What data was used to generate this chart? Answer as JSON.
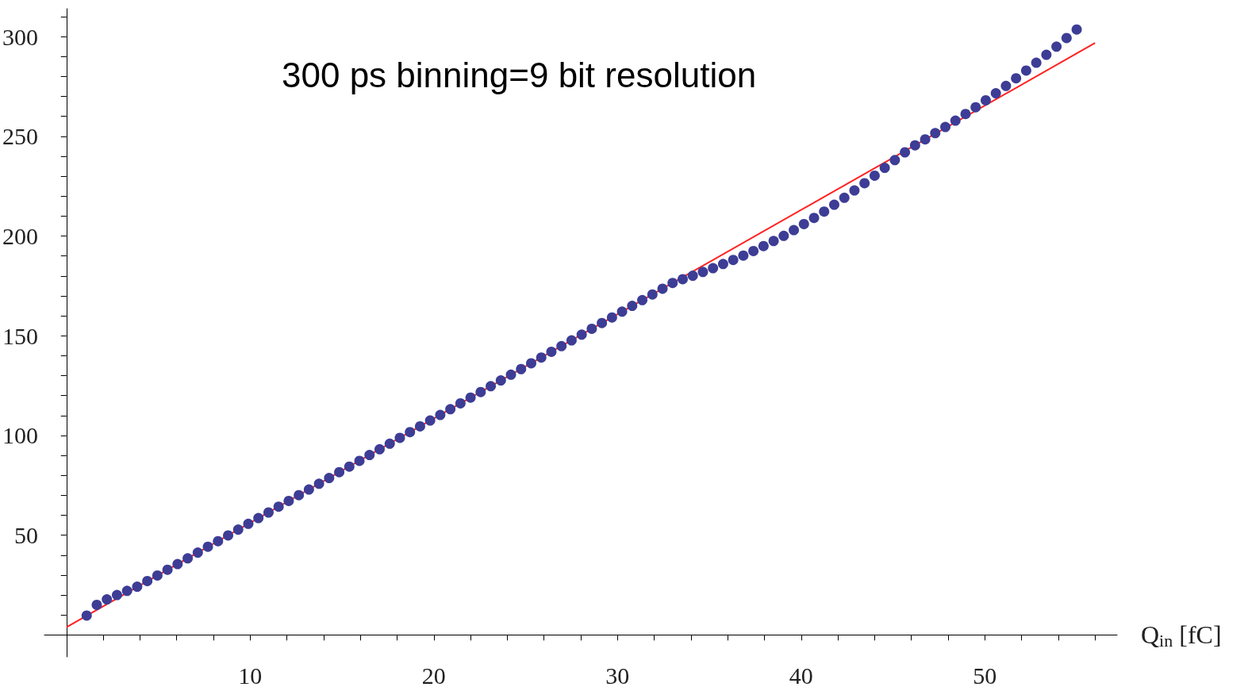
{
  "chart_data": {
    "type": "scatter",
    "xlabel": "Q$_{in}$ [fC]",
    "annotations": [
      "300 ps binning=9 bit resolution"
    ],
    "xlim": [
      -1.2,
      57.2
    ],
    "ylim": [
      -11,
      314
    ],
    "xticks": [
      {
        "value": 2,
        "label": null
      },
      {
        "value": 4,
        "label": null
      },
      {
        "value": 6,
        "label": null
      },
      {
        "value": 8,
        "label": null
      },
      10,
      {
        "value": 12,
        "label": null
      },
      {
        "value": 14,
        "label": null
      },
      {
        "value": 16,
        "label": null
      },
      {
        "value": 18,
        "label": null
      },
      20,
      {
        "value": 22,
        "label": null
      },
      {
        "value": 24,
        "label": null
      },
      {
        "value": 26,
        "label": null
      },
      {
        "value": 28,
        "label": null
      },
      30,
      {
        "value": 32,
        "label": null
      },
      {
        "value": 34,
        "label": null
      },
      {
        "value": 36,
        "label": null
      },
      {
        "value": 38,
        "label": null
      },
      40,
      {
        "value": 42,
        "label": null
      },
      {
        "value": 44,
        "label": null
      },
      {
        "value": 46,
        "label": null
      },
      {
        "value": 48,
        "label": null
      },
      50,
      {
        "value": 52,
        "label": null
      },
      {
        "value": 54,
        "label": null
      },
      {
        "value": 56,
        "label": null
      }
    ],
    "yticks": [
      {
        "value": 10,
        "label": null
      },
      {
        "value": 20,
        "label": null
      },
      {
        "value": 30,
        "label": null
      },
      {
        "value": 40,
        "label": null
      },
      50,
      {
        "value": 60,
        "label": null
      },
      {
        "value": 70,
        "label": null
      },
      {
        "value": 80,
        "label": null
      },
      {
        "value": 90,
        "label": null
      },
      100,
      {
        "value": 110,
        "label": null
      },
      {
        "value": 120,
        "label": null
      },
      {
        "value": 130,
        "label": null
      },
      {
        "value": 140,
        "label": null
      },
      150,
      {
        "value": 160,
        "label": null
      },
      {
        "value": 170,
        "label": null
      },
      {
        "value": 180,
        "label": null
      },
      {
        "value": 190,
        "label": null
      },
      200,
      {
        "value": 210,
        "label": null
      },
      {
        "value": 220,
        "label": null
      },
      {
        "value": 230,
        "label": null
      },
      {
        "value": 240,
        "label": null
      },
      250,
      {
        "value": 260,
        "label": null
      },
      {
        "value": 270,
        "label": null
      },
      {
        "value": 280,
        "label": null
      },
      {
        "value": 290,
        "label": null
      },
      300,
      {
        "value": 310,
        "label": null
      }
    ],
    "series": [
      {
        "color": "#3d3d96",
        "marker": "circle",
        "x": [
          1.1,
          1.65,
          2.2,
          2.75,
          3.3,
          3.85,
          4.4,
          4.95,
          5.5,
          6.05,
          6.6,
          7.15,
          7.7,
          8.25,
          8.8,
          9.35,
          9.9,
          10.45,
          11.0,
          11.55,
          12.1,
          12.65,
          13.2,
          13.75,
          14.3,
          14.85,
          15.4,
          15.95,
          16.5,
          17.05,
          17.6,
          18.15,
          18.7,
          19.25,
          19.8,
          20.35,
          20.9,
          21.45,
          22.0,
          22.55,
          23.1,
          23.65,
          24.2,
          24.75,
          25.3,
          25.85,
          26.4,
          26.95,
          27.5,
          28.05,
          28.6,
          29.15,
          29.7,
          30.25,
          30.8,
          31.35,
          31.9,
          32.45,
          33.0,
          33.55,
          34.1,
          34.65,
          35.2,
          35.75,
          36.3,
          36.85,
          37.4,
          37.95,
          38.5,
          39.05,
          39.6,
          40.15,
          40.7,
          41.25,
          41.8,
          42.35,
          42.9,
          43.45,
          44.0,
          44.55,
          45.1,
          45.65,
          46.2,
          46.75,
          47.3,
          47.85,
          48.4,
          48.95,
          49.5,
          50.05,
          50.6,
          51.15,
          51.7,
          52.25,
          52.8,
          53.35,
          53.9,
          54.45,
          55.0
        ],
        "values": [
          9.7,
          15.1,
          17.8,
          20.0,
          22.1,
          24.2,
          27.0,
          29.8,
          32.7,
          35.5,
          38.4,
          41.3,
          44.2,
          47.0,
          49.9,
          52.8,
          55.7,
          58.6,
          61.4,
          64.3,
          67.2,
          70.1,
          72.9,
          75.8,
          78.7,
          81.6,
          84.4,
          87.3,
          90.2,
          93.1,
          95.9,
          98.8,
          101.7,
          104.6,
          107.5,
          110.3,
          113.2,
          116.1,
          119.0,
          121.8,
          124.7,
          127.6,
          130.5,
          133.3,
          136.2,
          139.1,
          142.0,
          144.8,
          147.7,
          150.6,
          153.5,
          156.4,
          159.2,
          162.1,
          165.0,
          167.9,
          170.7,
          173.6,
          176.5,
          178.4,
          180.1,
          182.0,
          183.9,
          186.0,
          188.0,
          190.2,
          192.5,
          195.0,
          197.5,
          200.1,
          203.0,
          206.0,
          209.1,
          212.3,
          215.7,
          219.2,
          222.9,
          226.5,
          230.3,
          234.2,
          238.1,
          242.0,
          245.5,
          248.5,
          251.6,
          254.7,
          257.9,
          261.2,
          264.6,
          268.1,
          271.6,
          275.3,
          279.1,
          283.0,
          286.9,
          290.9,
          295.0,
          299.3,
          303.6
        ]
      },
      {
        "type": "line",
        "marker": "none",
        "color": "#ff2020",
        "x": [
          0,
          56
        ],
        "values": [
          3.9,
          296.8
        ]
      }
    ]
  }
}
